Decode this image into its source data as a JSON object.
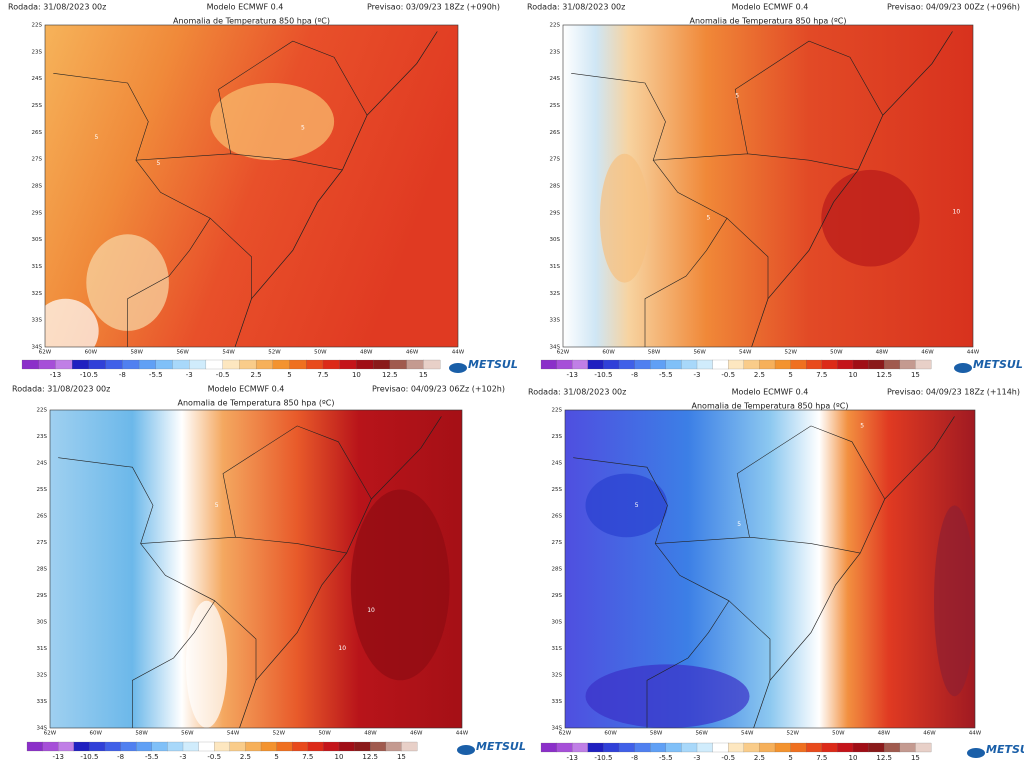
{
  "panels": [
    {
      "run": "Rodada: 31/08/2023 00z",
      "model": "Modelo ECMWF 0.4",
      "forecast": "Previsao: 03/09/23 18Zz (+090h)",
      "title": "Anomalia de Temperatura 850 hpa (ºC)",
      "contours": [
        "5",
        "5",
        "5"
      ]
    },
    {
      "run": "Rodada: 31/08/2023 00z",
      "model": "Modelo ECMWF 0.4",
      "forecast": "Previsao: 04/09/23 00Zz (+096h)",
      "title": "Anomalia de Temperatura 850 hpa (ºC)",
      "contours": [
        "5",
        "5",
        "10"
      ]
    },
    {
      "run": "Rodada: 31/08/2023 00z",
      "model": "Modelo ECMWF 0.4",
      "forecast": "Previsao: 04/09/23 06Zz (+102h)",
      "title": "Anomalia de Temperatura 850 hpa (ºC)",
      "contours": [
        "5",
        "10",
        "10"
      ]
    },
    {
      "run": "Rodada: 31/08/2023 00z",
      "model": "Modelo ECMWF 0.4",
      "forecast": "Previsao: 04/09/23 18Zz (+114h)",
      "title": "Anomalia de Temperatura 850 hpa (ºC)",
      "contours": [
        "5",
        "5",
        "5"
      ]
    }
  ],
  "lat_labels": [
    "22S",
    "23S",
    "24S",
    "25S",
    "26S",
    "27S",
    "28S",
    "29S",
    "30S",
    "31S",
    "32S",
    "33S",
    "34S"
  ],
  "lon_labels": [
    "62W",
    "60W",
    "58W",
    "56W",
    "54W",
    "52W",
    "50W",
    "48W",
    "46W",
    "44W"
  ],
  "colorbar_labels": [
    "-13",
    "-10.5",
    "-8",
    "-5.5",
    "-3",
    "-0.5",
    "2.5",
    "5",
    "7.5",
    "10",
    "12.5",
    "15"
  ],
  "logo": "METSUL"
}
